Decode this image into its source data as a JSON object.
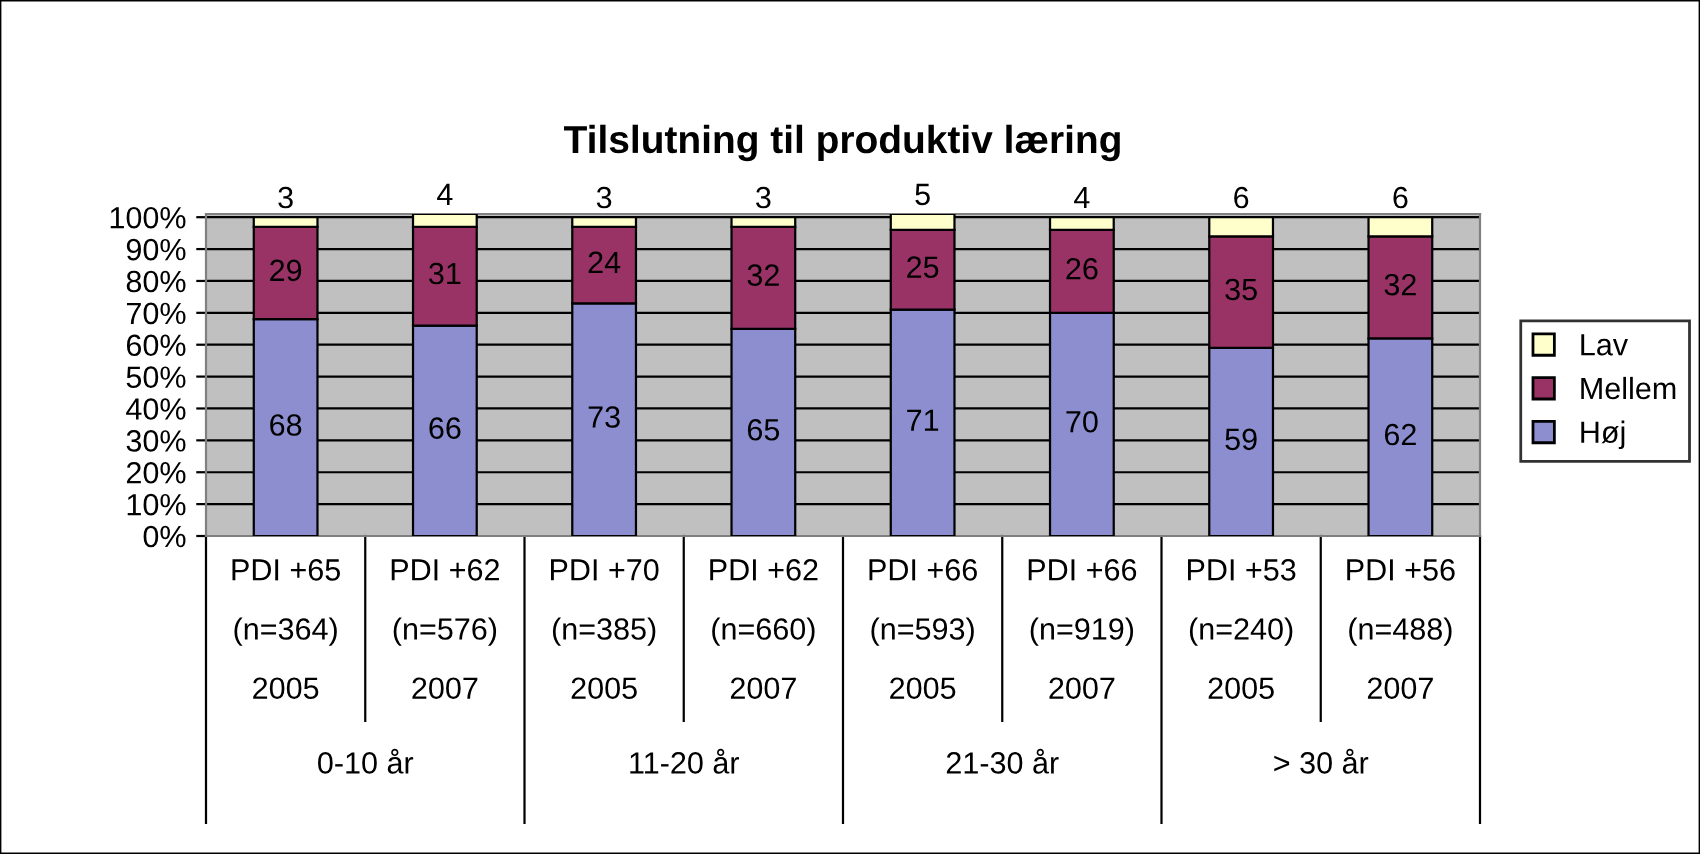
{
  "chart_data": {
    "type": "bar",
    "title": "Tilslutning til produktiv læring",
    "stacked": true,
    "categories": [
      "PDI +65\n\n(n=364)\n\n2005",
      "PDI +62\n\n(n=576)\n\n2007",
      "PDI +70\n\n(n=385)\n\n2005",
      "PDI +62\n\n(n=660)\n\n2007",
      "PDI +66\n\n(n=593)\n\n2005",
      "PDI +66\n\n(n=919)\n\n2007",
      "PDI +53\n\n(n=240)\n\n2005",
      "PDI +56\n\n(n=488)\n\n2007"
    ],
    "series": [
      {
        "name": "Høj",
        "color": "#8c8ed0",
        "values": [
          68,
          66,
          73,
          65,
          71,
          70,
          59,
          62
        ]
      },
      {
        "name": "Mellem",
        "color": "#993366",
        "values": [
          29,
          31,
          24,
          32,
          25,
          26,
          35,
          32
        ]
      },
      {
        "name": "Lav",
        "color": "#ffffcc",
        "values": [
          3,
          4,
          3,
          3,
          5,
          4,
          6,
          6
        ]
      }
    ],
    "annotations": [
      "0-10 år",
      "11-20 år",
      "21-30 år",
      "> 30 år"
    ],
    "ylim": [
      0,
      101
    ],
    "yticks": [
      {
        "value": 0,
        "label": "0%"
      },
      {
        "value": 10,
        "label": "10%"
      },
      {
        "value": 20,
        "label": "20%"
      },
      {
        "value": 30,
        "label": "30%"
      },
      {
        "value": 40,
        "label": "40%"
      },
      {
        "value": 50,
        "label": "50%"
      },
      {
        "value": 60,
        "label": "60%"
      },
      {
        "value": 70,
        "label": "70%"
      },
      {
        "value": 80,
        "label": "80%"
      },
      {
        "value": 90,
        "label": "90%"
      },
      {
        "value": 100,
        "label": "100%"
      }
    ],
    "grid": "y",
    "legend": "right",
    "data_labels": true
  }
}
